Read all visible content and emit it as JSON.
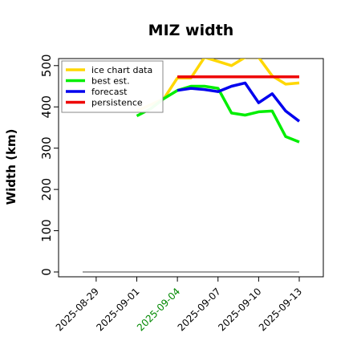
{
  "chart_data": {
    "type": "line",
    "title": "MIZ width",
    "xlabel": "",
    "ylabel": "Width (km)",
    "ylim": [
      0,
      520
    ],
    "xlim": [
      "2025-08-28",
      "2025-09-13"
    ],
    "yticks": [
      "0",
      "100",
      "200",
      "300",
      "400",
      "500"
    ],
    "xticks": [
      {
        "label": "2025-08-29",
        "date": "2025-08-29",
        "color": "#000000"
      },
      {
        "label": "2025-09-01",
        "date": "2025-09-01",
        "color": "#000000"
      },
      {
        "label": "2025-09-04",
        "date": "2025-09-04",
        "color": "#008800"
      },
      {
        "label": "2025-09-07",
        "date": "2025-09-07",
        "color": "#000000"
      },
      {
        "label": "2025-09-10",
        "date": "2025-09-10",
        "color": "#000000"
      },
      {
        "label": "2025-09-13",
        "date": "2025-09-13",
        "color": "#000000"
      }
    ],
    "grid": false,
    "legend_position": "top-left",
    "series": [
      {
        "name": "ice chart data",
        "color": "#FFD700",
        "x": [
          "2025-09-01",
          "2025-09-02",
          "2025-09-03",
          "2025-09-04",
          "2025-09-05",
          "2025-09-06",
          "2025-09-07",
          "2025-09-08",
          "2025-09-09",
          "2025-09-10",
          "2025-09-11",
          "2025-09-12",
          "2025-09-13"
        ],
        "y": [
          390,
          405,
          420,
          470,
          470,
          520,
          510,
          500,
          520,
          520,
          475,
          455,
          458
        ]
      },
      {
        "name": "best est.",
        "color": "#00EE00",
        "x": [
          "2025-09-01",
          "2025-09-02",
          "2025-09-03",
          "2025-09-04",
          "2025-09-05",
          "2025-09-06",
          "2025-09-07",
          "2025-09-08",
          "2025-09-09",
          "2025-09-10",
          "2025-09-11",
          "2025-09-12",
          "2025-09-13"
        ],
        "y": [
          378,
          395,
          420,
          440,
          450,
          450,
          445,
          385,
          380,
          388,
          390,
          328,
          315
        ]
      },
      {
        "name": "forecast",
        "color": "#0000EE",
        "x": [
          "2025-09-04",
          "2025-09-05",
          "2025-09-06",
          "2025-09-07",
          "2025-09-08",
          "2025-09-09",
          "2025-09-10",
          "2025-09-11",
          "2025-09-12",
          "2025-09-13"
        ],
        "y": [
          440,
          445,
          442,
          437,
          450,
          458,
          410,
          432,
          390,
          365
        ]
      },
      {
        "name": "persistence",
        "color": "#EE0000",
        "x": [
          "2025-09-04",
          "2025-09-13"
        ],
        "y": [
          473,
          473
        ]
      }
    ],
    "reference_line": {
      "y": 0,
      "x": [
        "2025-08-28",
        "2025-09-13"
      ],
      "color": "#808080"
    }
  }
}
